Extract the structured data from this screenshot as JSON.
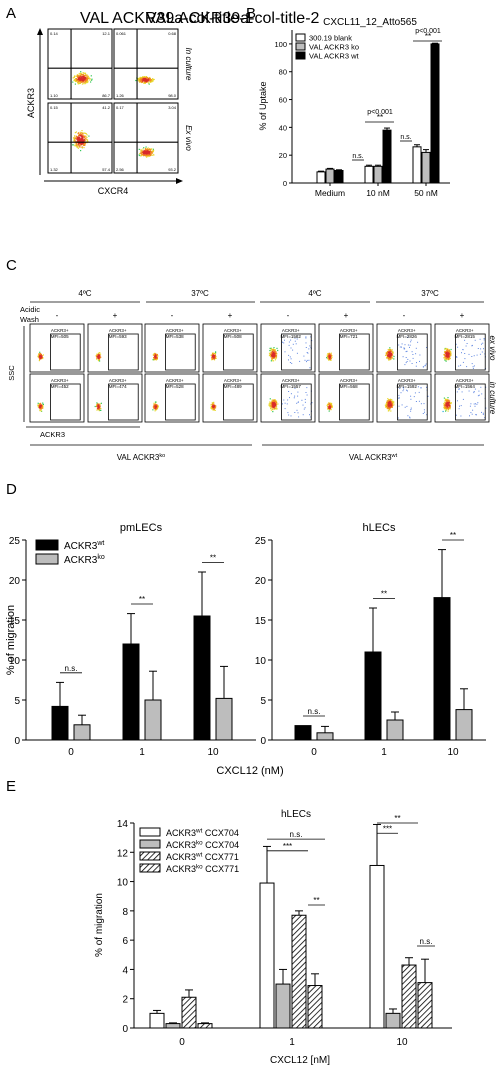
{
  "panel_labels": [
    "A",
    "B",
    "C",
    "D",
    "E"
  ],
  "panel_a": {
    "col_titles": [
      "VAL ACKR3",
      "VAL ACKR3"
    ],
    "col_superscripts": [
      "wt",
      "ko"
    ],
    "row_labels": [
      "In culture",
      "Ex vivo"
    ],
    "ylabel": "ACKR3",
    "xlabel": "CXCR4",
    "quadrant_values": [
      [
        "0.14",
        "12.1",
        "1.10",
        "86.7"
      ],
      [
        "0.061",
        "0.68",
        "1.26",
        "98.0"
      ],
      [
        "0.15",
        "41.2",
        "1.32",
        "57.4"
      ],
      [
        "0.17",
        "3.04",
        "2.56",
        "93.2"
      ]
    ]
  },
  "panel_c": {
    "temp_labels": [
      "4ºC",
      "37ºC",
      "4ºC",
      "37ºC"
    ],
    "wash_label_1": "Acidic",
    "wash_label_2": "Wash",
    "wash_signs": [
      "-",
      "+",
      "-",
      "+",
      "-",
      "+",
      "-",
      "+"
    ],
    "row_labels": [
      "ex vivo",
      "in culture"
    ],
    "gate_label": "ACKR3+",
    "mfi_top": [
      "MFI=505",
      "MFI=593",
      "MFI=538",
      "MFI=508",
      "MFI=1582",
      "MFI=721",
      "MFI=2826",
      "MFI=2815"
    ],
    "mfi_bottom": [
      "MFI=452",
      "MFI=474",
      "MFI=528",
      "MFI=489",
      "MFI=1557",
      "MFI=568",
      "MFI=1592",
      "MFI=1564"
    ],
    "ylabel": "SSC",
    "xlabel": "ACKR3",
    "group_labels": [
      "VAL ACKR3",
      "VAL ACKR3"
    ],
    "group_superscripts": [
      "ko",
      "wt"
    ]
  },
  "chart_data": [
    {
      "id": "B",
      "type": "bar",
      "title": "CXCL11_12_Atto565",
      "ylabel": "% of Uptake",
      "xlabel": "",
      "ylim": [
        0,
        110
      ],
      "yticks": [
        0,
        20,
        40,
        60,
        80,
        100
      ],
      "categories": [
        "Medium",
        "10 nM",
        "50 nM"
      ],
      "legend_position": "top-left",
      "series": [
        {
          "name": "300.19 blank",
          "color": "#ffffff",
          "values": [
            8,
            12,
            26
          ],
          "errors": [
            0.5,
            0.8,
            1.5
          ]
        },
        {
          "name": "VAL ACKR3 ko",
          "color": "#bdbdbd",
          "values": [
            10,
            12,
            22
          ],
          "errors": [
            0.5,
            0.8,
            2
          ]
        },
        {
          "name": "VAL ACKR3 wt",
          "color": "#000000",
          "values": [
            9,
            38,
            100
          ],
          "errors": [
            0.5,
            1.5,
            0.5
          ]
        }
      ],
      "annotations": [
        {
          "label": "n.s.",
          "category": 1
        },
        {
          "label": "**",
          "category": 1
        },
        {
          "label": "p<0.001",
          "category": 1
        },
        {
          "label": "n.s.",
          "category": 2
        },
        {
          "label": "**",
          "category": 2
        },
        {
          "label": "p<0.001",
          "category": 2
        }
      ]
    },
    {
      "id": "D",
      "type": "bar",
      "titles": [
        "pmLECs",
        "hLECs"
      ],
      "ylabel": "% of migration",
      "xlabel": "CXCL12 (nM)",
      "ylim": [
        0,
        25
      ],
      "yticks": [
        0,
        5,
        10,
        15,
        20,
        25
      ],
      "categories": [
        "0",
        "1",
        "10"
      ],
      "legend_position": "top-left",
      "legend": [
        {
          "name": "ACKR3",
          "sup": "wt",
          "color": "#000000"
        },
        {
          "name": "ACKR3",
          "sup": "ko",
          "color": "#bdbdbd"
        }
      ],
      "subplots": [
        {
          "title": "pmLECs",
          "wt": [
            4.2,
            12.0,
            15.5
          ],
          "wt_err": [
            3.0,
            3.8,
            5.5
          ],
          "ko": [
            1.9,
            5.0,
            5.2
          ],
          "ko_err": [
            1.2,
            3.6,
            4.0
          ],
          "signif": [
            "n.s.",
            "**",
            "**"
          ]
        },
        {
          "title": "hLECs",
          "wt": [
            1.8,
            11.0,
            17.8
          ],
          "wt_err": [
            0.0,
            5.5,
            6.0
          ],
          "ko": [
            0.9,
            2.5,
            3.8
          ],
          "ko_err": [
            0.8,
            1.0,
            2.6
          ],
          "signif": [
            "n.s.",
            "**",
            "**"
          ]
        }
      ]
    },
    {
      "id": "E",
      "type": "bar",
      "title": "hLECs",
      "ylabel": "% of migration",
      "xlabel": "CXCL12 [nM]",
      "ylim": [
        0,
        14
      ],
      "yticks": [
        0,
        2,
        4,
        6,
        8,
        10,
        12,
        14
      ],
      "categories": [
        "0",
        "1",
        "10"
      ],
      "legend_position": "top-left",
      "series": [
        {
          "name": "ACKR3",
          "sup": "wt",
          "suffix": " CCX704",
          "fill": "#ffffff",
          "hatch": false,
          "values": [
            1.0,
            9.9,
            11.1
          ],
          "errors": [
            0.2,
            2.5,
            2.8
          ]
        },
        {
          "name": "ACKR3",
          "sup": "ko",
          "suffix": " CCX704",
          "fill": "#bdbdbd",
          "hatch": false,
          "values": [
            0.3,
            3.0,
            1.0
          ],
          "errors": [
            0.05,
            1.0,
            0.3
          ]
        },
        {
          "name": "ACKR3",
          "sup": "wt",
          "suffix": " CCX771",
          "fill": "#ffffff",
          "hatch": true,
          "values": [
            2.1,
            7.7,
            4.3
          ],
          "errors": [
            0.5,
            0.3,
            0.5
          ]
        },
        {
          "name": "ACKR3",
          "sup": "ko",
          "suffix": " CCX771",
          "fill": "#ffffff",
          "hatch": true,
          "values": [
            0.3,
            2.9,
            3.1
          ],
          "errors": [
            0.05,
            0.8,
            1.6
          ]
        }
      ],
      "annotations": [
        "n.s.",
        "***",
        "**",
        "**",
        "***",
        "n.s."
      ]
    }
  ]
}
